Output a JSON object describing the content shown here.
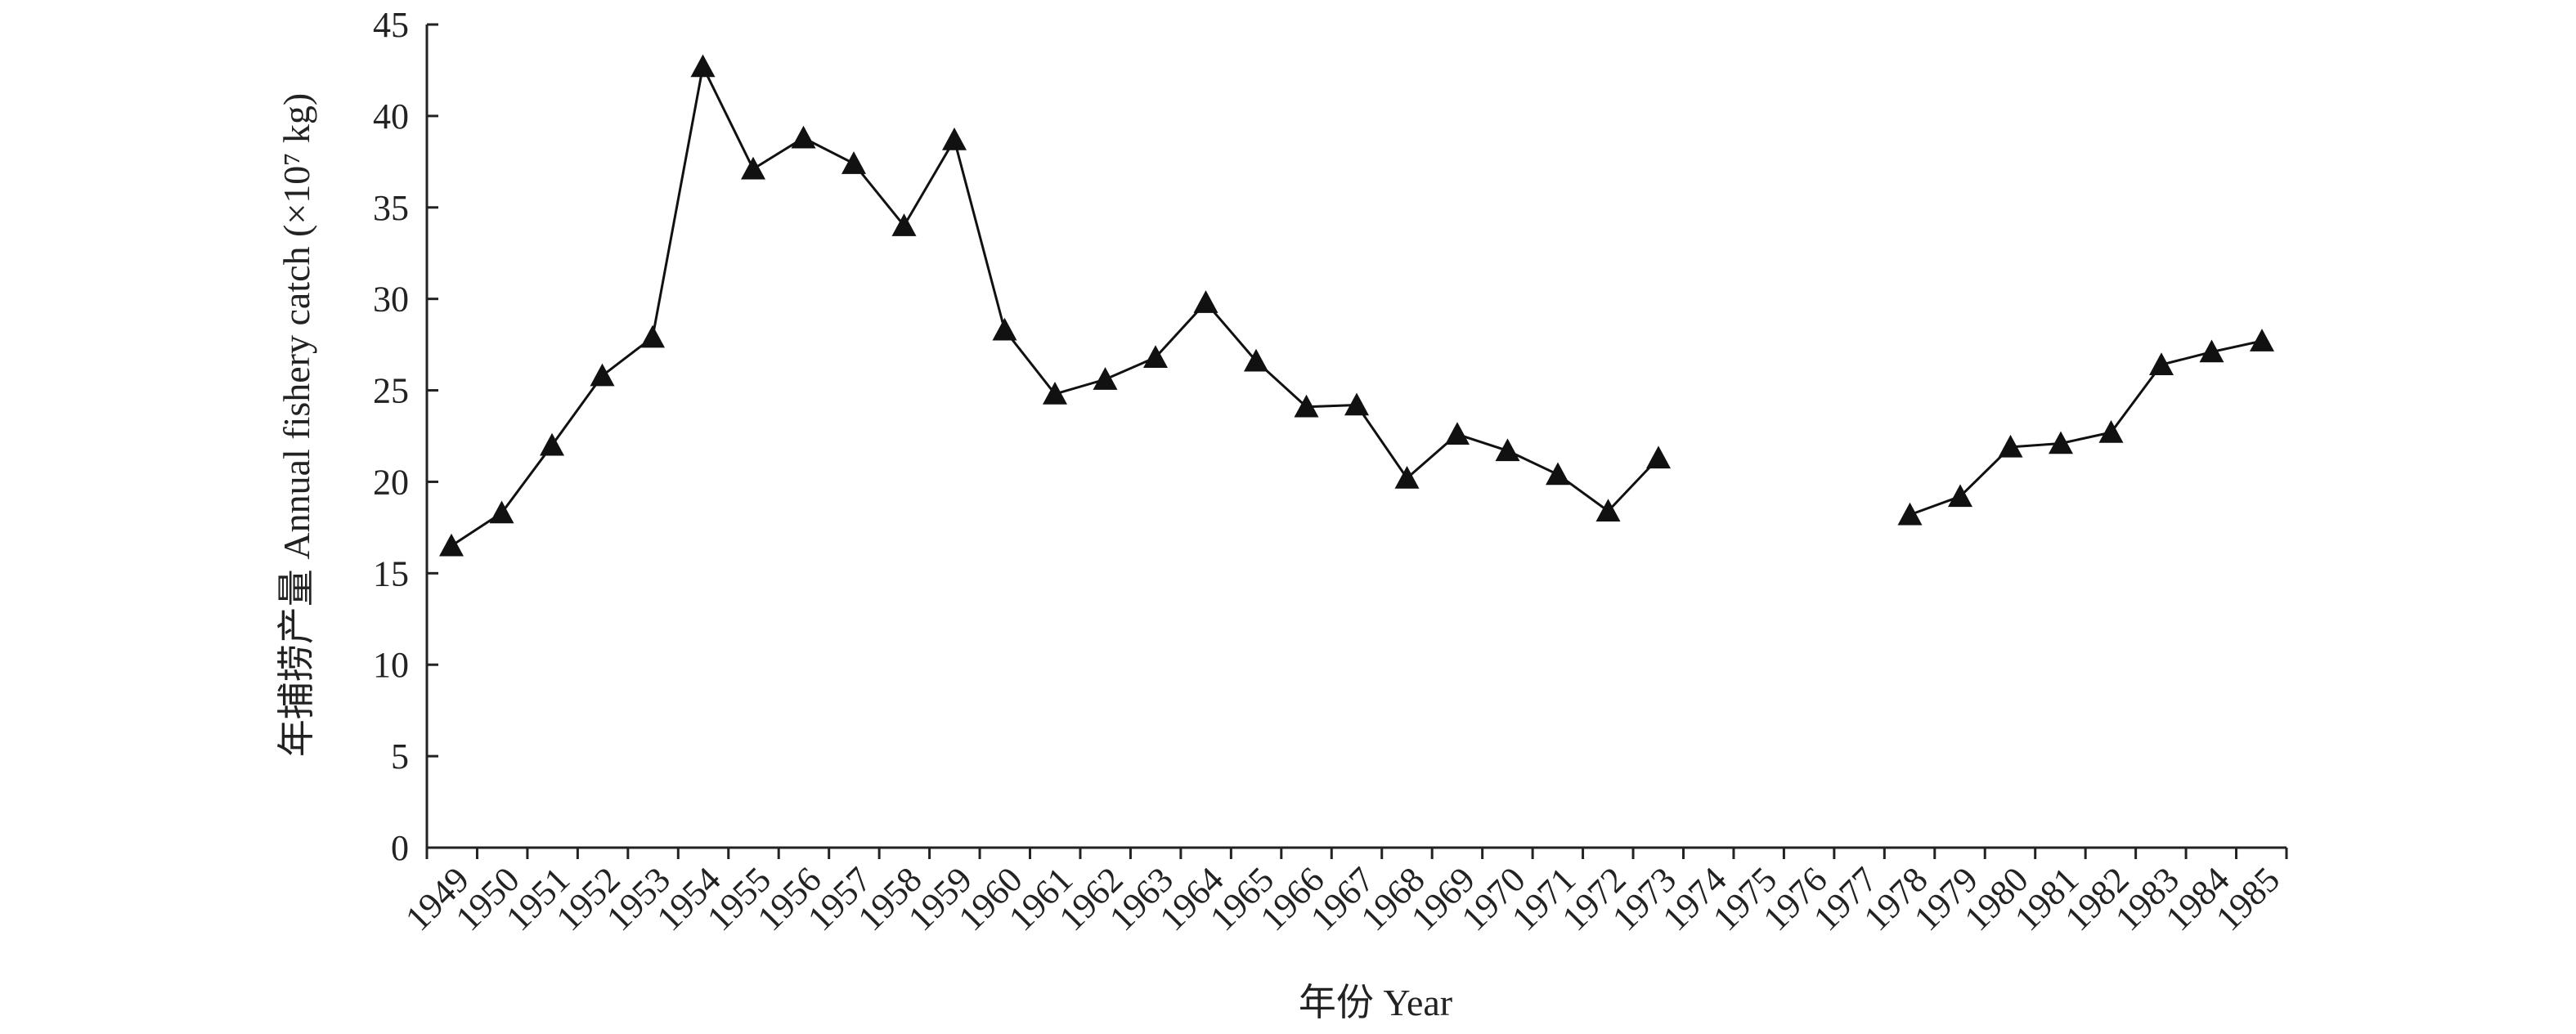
{
  "chart_data": {
    "type": "line",
    "xlabel": "年份 Year",
    "ylabel": "年捕捞产量 Annual fishery catch (×10⁷ kg)",
    "ylim": [
      0,
      45
    ],
    "yticks": [
      0,
      5,
      10,
      15,
      20,
      25,
      30,
      35,
      40,
      45
    ],
    "categories": [
      "1949",
      "1950",
      "1951",
      "1952",
      "1953",
      "1954",
      "1955",
      "1956",
      "1957",
      "1958",
      "1959",
      "1960",
      "1961",
      "1962",
      "1963",
      "1964",
      "1965",
      "1966",
      "1967",
      "1968",
      "1969",
      "1970",
      "1971",
      "1972",
      "1973",
      "1974",
      "1975",
      "1976",
      "1977",
      "1978",
      "1979",
      "1980",
      "1981",
      "1982",
      "1983",
      "1984",
      "1985"
    ],
    "values": [
      16.5,
      18.3,
      22.0,
      25.8,
      27.9,
      42.7,
      37.1,
      38.8,
      37.4,
      34.0,
      38.7,
      28.3,
      24.8,
      25.6,
      26.8,
      29.8,
      26.6,
      24.1,
      24.2,
      20.2,
      22.6,
      21.7,
      20.4,
      18.4,
      21.3,
      null,
      null,
      null,
      null,
      18.2,
      19.2,
      21.9,
      22.1,
      22.7,
      26.4,
      27.1,
      27.7
    ],
    "marker": "triangle",
    "grid": false,
    "legend": "none"
  }
}
